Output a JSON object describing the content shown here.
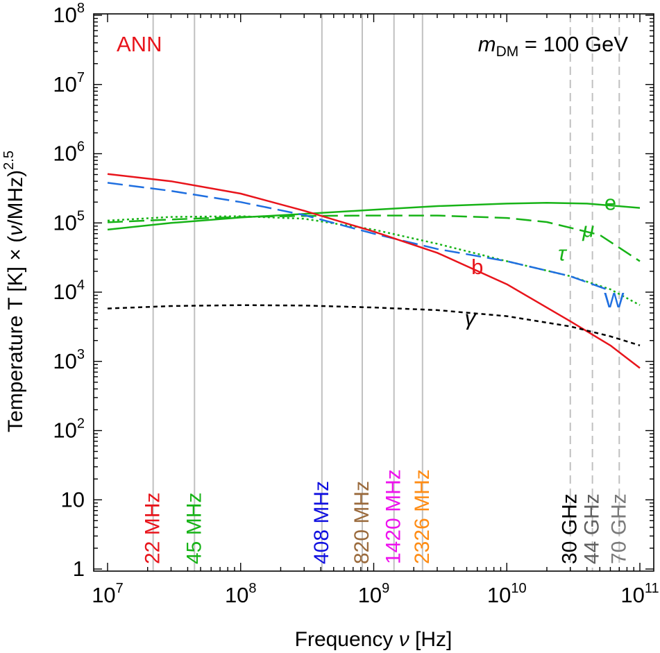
{
  "chart_data": {
    "type": "line",
    "title": "",
    "xlabel": "Frequency ν [Hz]",
    "ylabel": "Temperature T [K] × (ν/MHz)^2.5",
    "ylabel_main": "Temperature T [K] × (",
    "ylabel_nu": "ν",
    "ylabel_unit": "/MHz)",
    "ylabel_exp": "2.5",
    "xlabel_main": "Frequency ",
    "xlabel_nu": "ν",
    "xlabel_unit": " [Hz]",
    "x_scale": "log",
    "y_scale": "log",
    "xlim": [
      10000000,
      100000000000
    ],
    "ylim": [
      1,
      100000000
    ],
    "x_ticks": [
      {
        "value": 10000000,
        "base": "10",
        "exp": "7"
      },
      {
        "value": 100000000,
        "base": "10",
        "exp": "8"
      },
      {
        "value": 1000000000,
        "base": "10",
        "exp": "9"
      },
      {
        "value": 10000000000,
        "base": "10",
        "exp": "10"
      },
      {
        "value": 100000000000,
        "base": "10",
        "exp": "11"
      }
    ],
    "y_ticks": [
      {
        "value": 1,
        "base": "1",
        "exp": ""
      },
      {
        "value": 10,
        "base": "10",
        "exp": ""
      },
      {
        "value": 100,
        "base": "10",
        "exp": "2"
      },
      {
        "value": 1000,
        "base": "10",
        "exp": "3"
      },
      {
        "value": 10000,
        "base": "10",
        "exp": "4"
      },
      {
        "value": 100000,
        "base": "10",
        "exp": "5"
      },
      {
        "value": 1000000,
        "base": "10",
        "exp": "6"
      },
      {
        "value": 10000000,
        "base": "10",
        "exp": "7"
      },
      {
        "value": 100000000,
        "base": "10",
        "exp": "8"
      }
    ],
    "annotations": {
      "process": {
        "text": "ANN",
        "color": "#e8141b"
      },
      "mass_symbol": "m",
      "mass_sub": "DM",
      "mass_value": " = 100 GeV"
    },
    "frequency_markers": [
      {
        "label": "22 MHz",
        "freq": 22000000,
        "color": "#e8141b",
        "line": "solid"
      },
      {
        "label": "45 MHz",
        "freq": 45000000,
        "color": "#17b317",
        "line": "solid"
      },
      {
        "label": "408 MHz",
        "freq": 408000000,
        "color": "#1010e0",
        "line": "solid"
      },
      {
        "label": "820 MHz",
        "freq": 820000000,
        "color": "#9a6a3c",
        "line": "solid"
      },
      {
        "label": "1420 MHz",
        "freq": 1420000000,
        "color": "#ee12ee",
        "line": "solid"
      },
      {
        "label": "2326 MHz",
        "freq": 2326000000,
        "color": "#ff8c14",
        "line": "solid"
      },
      {
        "label": "30 GHz",
        "freq": 30000000000,
        "color": "#000000",
        "line": "dashed"
      },
      {
        "label": "44 GHz",
        "freq": 44000000000,
        "color": "#606060",
        "line": "dashed"
      },
      {
        "label": "70 GHz",
        "freq": 70000000000,
        "color": "#7a7a7a",
        "line": "dashed"
      }
    ],
    "series": [
      {
        "name": "e",
        "color": "#17b317",
        "dash": "solid",
        "label_at": {
          "x": 60000000000,
          "y": 195000
        },
        "points": [
          [
            10000000,
            80000
          ],
          [
            30000000,
            100000
          ],
          [
            100000000,
            120000
          ],
          [
            300000000,
            135000
          ],
          [
            1000000000,
            155000
          ],
          [
            3000000000,
            175000
          ],
          [
            10000000000,
            190000
          ],
          [
            20000000000,
            195000
          ],
          [
            40000000000,
            190000
          ],
          [
            100000000000,
            165000
          ]
        ]
      },
      {
        "name": "μ",
        "color": "#17b317",
        "dash": "long",
        "label_at": {
          "x": 41000000000,
          "y": 79000
        },
        "points": [
          [
            10000000,
            102000
          ],
          [
            30000000,
            112000
          ],
          [
            100000000,
            122000
          ],
          [
            300000000,
            126000
          ],
          [
            1000000000,
            128000
          ],
          [
            3000000000,
            128000
          ],
          [
            10000000000,
            118000
          ],
          [
            20000000000,
            103000
          ],
          [
            50000000000,
            67000
          ],
          [
            100000000000,
            28000
          ]
        ]
      },
      {
        "name": "τ",
        "color": "#17b317",
        "dash": "dotted",
        "label_at": {
          "x": 26000000000,
          "y": 36000
        },
        "points": [
          [
            10000000,
            108000
          ],
          [
            30000000,
            122000
          ],
          [
            100000000,
            125000
          ],
          [
            300000000,
            115000
          ],
          [
            1000000000,
            80000
          ],
          [
            3000000000,
            50000
          ],
          [
            10000000000,
            28000
          ],
          [
            30000000000,
            17000
          ],
          [
            60000000000,
            11000
          ],
          [
            100000000000,
            6500
          ]
        ]
      },
      {
        "name": "W",
        "color": "#1f6fe0",
        "dash": "long",
        "label_at": {
          "x": 64000000000,
          "y": 7600
        },
        "points": [
          [
            10000000,
            380000
          ],
          [
            30000000,
            290000
          ],
          [
            100000000,
            200000
          ],
          [
            300000000,
            130000
          ],
          [
            1000000000,
            70000
          ],
          [
            3000000000,
            42000
          ],
          [
            10000000000,
            28000
          ],
          [
            30000000000,
            17000
          ],
          [
            60000000000,
            10500
          ]
        ]
      },
      {
        "name": "b",
        "color": "#e8141b",
        "dash": "solid",
        "label_at": {
          "x": 6000000000,
          "y": 23000
        },
        "points": [
          [
            10000000,
            510000
          ],
          [
            30000000,
            400000
          ],
          [
            100000000,
            265000
          ],
          [
            300000000,
            150000
          ],
          [
            1000000000,
            75000
          ],
          [
            3000000000,
            37000
          ],
          [
            10000000000,
            13000
          ],
          [
            30000000000,
            3800
          ],
          [
            60000000000,
            1700
          ],
          [
            100000000000,
            800
          ]
        ]
      },
      {
        "name": "γ",
        "color": "#000000",
        "dash": "short",
        "label_at": {
          "x": 5300000000,
          "y": 4200
        },
        "points": [
          [
            10000000,
            5800
          ],
          [
            30000000,
            6300
          ],
          [
            100000000,
            6500
          ],
          [
            300000000,
            6400
          ],
          [
            1000000000,
            6000
          ],
          [
            3000000000,
            5500
          ],
          [
            10000000000,
            4500
          ],
          [
            30000000000,
            3200
          ],
          [
            60000000000,
            2300
          ],
          [
            100000000000,
            1700
          ]
        ]
      }
    ]
  }
}
